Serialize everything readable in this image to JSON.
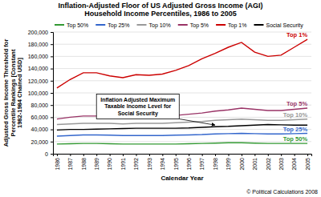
{
  "chart_data": {
    "type": "line",
    "title": "Inflation-Adjusted Floor of US Adjusted Gross Income (AGI)",
    "subtitle": "Household Income Percentiles, 1986 to 2005",
    "x_label": "Calendar Year",
    "y_label": "Adjusted Gross Income Threshold for Percentile Rankings [Constant 1982-1984 Chained USD]",
    "categories": [
      "1986",
      "1987",
      "1988",
      "1989",
      "1990",
      "1991",
      "1992",
      "1993",
      "1994",
      "1995",
      "1996",
      "1997",
      "1998",
      "1999",
      "2000",
      "2001",
      "2002",
      "2003",
      "2004",
      "2005"
    ],
    "series": [
      {
        "name": "Top 50%",
        "color": "#339933",
        "values": [
          16000,
          16500,
          17000,
          17000,
          16500,
          16000,
          16000,
          16000,
          16000,
          16000,
          16500,
          17000,
          17500,
          18000,
          18000,
          17500,
          17000,
          17000,
          17000,
          17000
        ]
      },
      {
        "name": "Top 25%",
        "color": "#3366cc",
        "values": [
          29000,
          30000,
          31000,
          31000,
          30500,
          30000,
          30000,
          30000,
          30000,
          30500,
          31000,
          31500,
          32500,
          33000,
          33500,
          33000,
          32500,
          32500,
          33000,
          33500
        ]
      },
      {
        "name": "Top 10%",
        "color": "#999999",
        "values": [
          48000,
          49000,
          50000,
          50000,
          50000,
          49000,
          50000,
          50000,
          50000,
          51000,
          52000,
          53000,
          55000,
          56000,
          57000,
          56000,
          55000,
          55000,
          56000,
          57000
        ]
      },
      {
        "name": "Top 5%",
        "color": "#993366",
        "values": [
          57000,
          60000,
          62000,
          62000,
          61000,
          60000,
          61000,
          61000,
          62000,
          63000,
          65000,
          67000,
          70000,
          72000,
          75000,
          73000,
          71000,
          71000,
          73000,
          75000
        ]
      },
      {
        "name": "Top 1%",
        "color": "#cc0000",
        "values": [
          108000,
          122000,
          133000,
          133000,
          128000,
          125000,
          130000,
          129000,
          131000,
          137000,
          145000,
          156000,
          165000,
          175000,
          183000,
          167000,
          160000,
          162000,
          175000,
          188000
        ]
      },
      {
        "name": "Social Security",
        "color": "#000000",
        "values": [
          39000,
          40000,
          40000,
          40500,
          41000,
          41500,
          42000,
          42000,
          42000,
          42000,
          42500,
          43500,
          44500,
          45000,
          46000,
          47000,
          48000,
          47500,
          47000,
          47000
        ]
      }
    ],
    "ylim": [
      0,
      200000
    ],
    "yticks": [
      0,
      {
        "value": 20000,
        "label": "20,000"
      },
      {
        "value": 40000,
        "label": "40,000"
      },
      {
        "value": 60000,
        "label": "60,000"
      },
      {
        "value": 80000,
        "label": "80,000"
      },
      {
        "value": 100000,
        "label": "100,000"
      },
      {
        "value": 120000,
        "label": "120,000"
      },
      {
        "value": 140000,
        "label": "140,000"
      },
      {
        "value": 160000,
        "label": "160,000"
      },
      {
        "value": 180000,
        "label": "180,000"
      },
      {
        "value": 200000,
        "label": "200,000"
      }
    ],
    "grid": true,
    "legend": "top",
    "annotations": [
      "Inflation Adjusted Maximum Taxable Income Level for Social Security",
      "© Political Calculations 2008"
    ]
  }
}
